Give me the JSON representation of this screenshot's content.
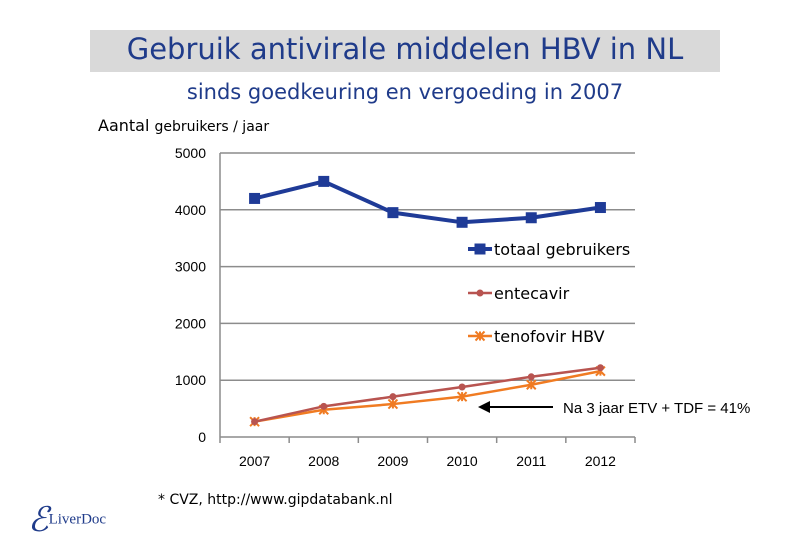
{
  "chart_data": {
    "type": "line",
    "title": "Gebruik antivirale middelen HBV in NL",
    "subtitle": "sinds goedkeuring en vergoeding in 2007",
    "ylabel_main": "Aantal",
    "ylabel_rest": "gebruikers / jaar",
    "categories": [
      "2007",
      "2008",
      "2009",
      "2010",
      "2011",
      "2012"
    ],
    "yticks": [
      "0",
      "1000",
      "2000",
      "3000",
      "4000",
      "5000"
    ],
    "ylim": [
      0,
      5000
    ],
    "grid": true,
    "legend_position": "right",
    "series": [
      {
        "name": "totaal gebruikers",
        "values": [
          4200,
          4500,
          3950,
          3780,
          3860,
          4040
        ],
        "color": "#1f3b97",
        "marker": "square"
      },
      {
        "name": "entecavir",
        "values": [
          270,
          540,
          710,
          880,
          1060,
          1220
        ],
        "color": "#b85450",
        "marker": "circle"
      },
      {
        "name": "tenofovir HBV",
        "values": [
          270,
          480,
          580,
          710,
          920,
          1160
        ],
        "color": "#f07b22",
        "marker": "star"
      }
    ],
    "annotation": "Na 3 jaar ETV + TDF = 41%",
    "footnote": "* CVZ, http://www.gipdatabank.nl"
  },
  "logo": {
    "symbol": "ℰ",
    "text": "LiverDoc"
  }
}
